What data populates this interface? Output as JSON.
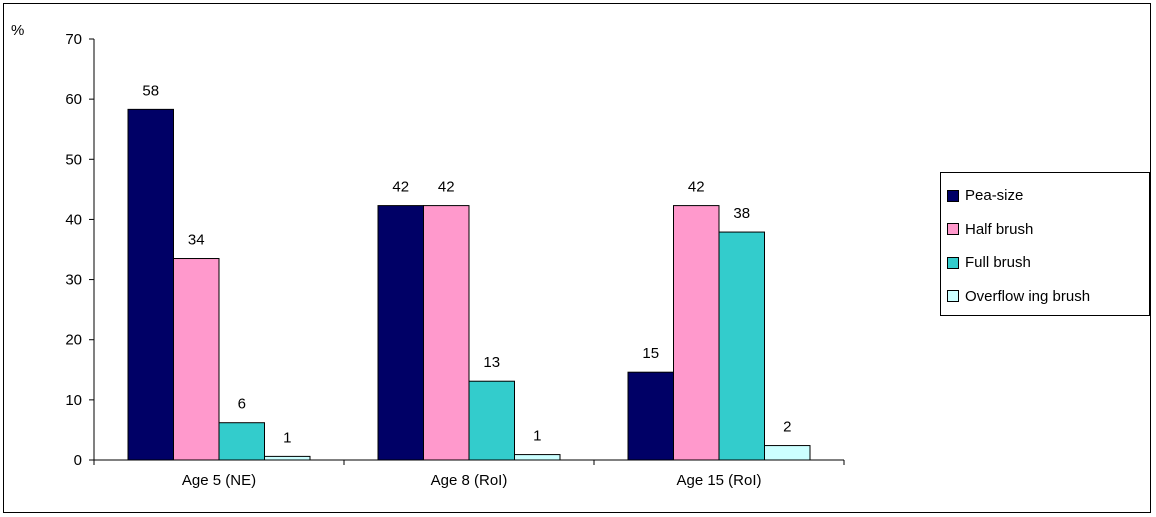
{
  "chart_data": {
    "type": "bar",
    "ylabel": "%",
    "ylim": [
      0,
      70
    ],
    "yticks": [
      "0",
      "10",
      "20",
      "30",
      "40",
      "50",
      "60",
      "70"
    ],
    "categories": [
      "Age 5 (NE)",
      "Age 8 (RoI)",
      "Age 15 (RoI)"
    ],
    "legend_position": "right",
    "grid": false,
    "series": [
      {
        "name": "Pea-size",
        "color": "#000066",
        "values": [
          58.3,
          42.3,
          14.6
        ],
        "labels": [
          "58",
          "42",
          "15"
        ]
      },
      {
        "name": "Half brush",
        "color": "#ff99cc",
        "values": [
          33.5,
          42.3,
          42.3
        ],
        "labels": [
          "34",
          "42",
          "42"
        ]
      },
      {
        "name": "Full brush",
        "color": "#33cccc",
        "values": [
          6.2,
          13.1,
          37.9
        ],
        "labels": [
          "6",
          "13",
          "38"
        ]
      },
      {
        "name": "Overflow ing brush",
        "color": "#ccffff",
        "values": [
          0.6,
          0.9,
          2.4
        ],
        "labels": [
          "1",
          "1",
          "2"
        ]
      }
    ]
  }
}
